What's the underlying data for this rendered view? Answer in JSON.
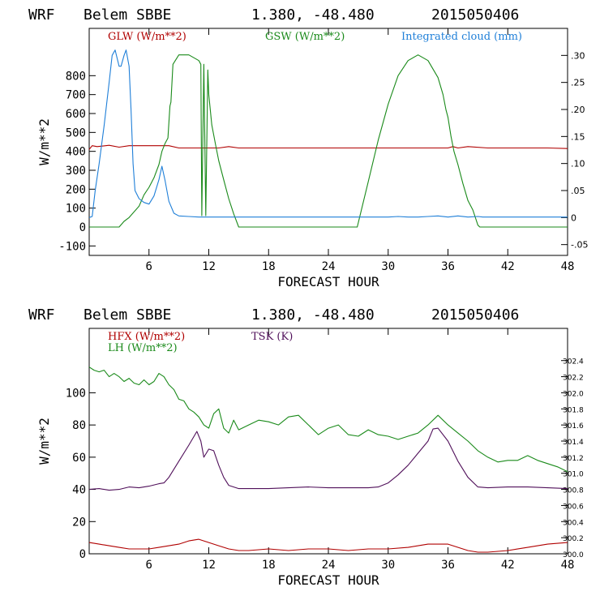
{
  "chart_data": [
    {
      "type": "line",
      "header": {
        "model": "WRF",
        "station": "Belem SBBE",
        "coords": "1.380, -48.480",
        "init": "2015050406"
      },
      "xlabel": "FORECAST HOUR",
      "ylabel": "W/m**2",
      "xlim": [
        0,
        48
      ],
      "ylim": [
        -150,
        1050
      ],
      "x_ticks": [
        "6",
        "12",
        "18",
        "24",
        "30",
        "36",
        "42",
        "48"
      ],
      "y_ticks": [
        "-100",
        "0",
        "100",
        "200",
        "300",
        "400",
        "500",
        "600",
        "700",
        "800"
      ],
      "right_ylim": [
        -0.07,
        0.35
      ],
      "right_ticks": [
        "-.05",
        "0",
        ".05",
        ".10",
        ".15",
        ".20",
        ".25",
        ".30"
      ],
      "colors": {
        "glw": "#b00000",
        "gsw": "#1a8a1a",
        "cloud": "#1f7fd8"
      },
      "series": [
        {
          "name": "GLW (W/m**2)",
          "axis": "left",
          "color": "#b00000",
          "x": [
            0,
            0.3,
            0.8,
            2,
            3,
            4,
            5,
            6,
            7,
            8,
            9,
            10,
            11,
            12,
            13,
            14,
            15,
            16,
            18,
            20,
            22,
            24,
            26,
            28,
            30,
            32,
            34,
            36,
            36.5,
            37,
            38,
            40,
            42,
            44,
            46,
            48
          ],
          "y": [
            410,
            430,
            425,
            432,
            422,
            430,
            430,
            430,
            430,
            430,
            418,
            418,
            418,
            418,
            418,
            425,
            418,
            418,
            418,
            418,
            418,
            418,
            418,
            418,
            418,
            418,
            418,
            418,
            425,
            418,
            425,
            418,
            418,
            418,
            418,
            415
          ]
        },
        {
          "name": "GSW (W/m**2)",
          "axis": "left",
          "color": "#1a8a1a",
          "x": [
            0,
            3,
            3.5,
            4,
            5,
            5.5,
            6,
            6.5,
            7,
            7.3,
            7.6,
            7.9,
            8.1,
            8.2,
            8.4,
            9,
            10,
            11,
            11.2,
            11.3,
            11.5,
            11.7,
            11.9,
            12,
            12.3,
            12.7,
            13,
            13.5,
            14,
            14.5,
            15,
            26.9,
            28,
            29,
            30,
            31,
            32,
            33,
            34,
            35,
            35.5,
            35.8,
            36,
            36.3,
            36.6,
            37,
            37.5,
            38,
            38.5,
            39,
            39.2,
            48
          ],
          "y": [
            0,
            0,
            30,
            50,
            110,
            170,
            210,
            260,
            330,
            400,
            440,
            470,
            640,
            660,
            860,
            910,
            910,
            880,
            860,
            60,
            860,
            60,
            830,
            700,
            540,
            430,
            350,
            250,
            150,
            70,
            0,
            0,
            240,
            460,
            650,
            800,
            880,
            910,
            880,
            790,
            700,
            620,
            580,
            480,
            400,
            330,
            230,
            140,
            90,
            10,
            0,
            0
          ]
        },
        {
          "name": "Integrated cloud (mm)",
          "axis": "right",
          "color": "#1f7fd8",
          "x": [
            0,
            0.3,
            0.6,
            1,
            1.5,
            2,
            2.3,
            2.6,
            3,
            3.2,
            3.5,
            3.7,
            4,
            4.2,
            4.4,
            4.6,
            5,
            5.5,
            6,
            6.5,
            7,
            7.3,
            7.6,
            8,
            8.5,
            9,
            10,
            11,
            12,
            13,
            20,
            30,
            31,
            32,
            33,
            34,
            35,
            36,
            37,
            38,
            39,
            39.5,
            40,
            48
          ],
          "y": [
            0,
            0.002,
            0.05,
            0.1,
            0.17,
            0.25,
            0.3,
            0.31,
            0.28,
            0.28,
            0.3,
            0.31,
            0.28,
            0.2,
            0.1,
            0.05,
            0.035,
            0.028,
            0.025,
            0.04,
            0.07,
            0.095,
            0.07,
            0.03,
            0.008,
            0.003,
            0.002,
            0.001,
            0.001,
            0.001,
            0.001,
            0.001,
            0.002,
            0.001,
            0.001,
            0.002,
            0.003,
            0.001,
            0.003,
            0.001,
            0.002,
            0.001,
            0.001,
            0.001
          ]
        }
      ]
    },
    {
      "type": "line",
      "header": {
        "model": "WRF",
        "station": "Belem SBBE",
        "coords": "1.380, -48.480",
        "init": "2015050406"
      },
      "xlabel": "FORECAST HOUR",
      "ylabel": "W/m**2",
      "xlim": [
        0,
        48
      ],
      "ylim": [
        0,
        140
      ],
      "x_ticks": [
        "6",
        "12",
        "18",
        "24",
        "30",
        "36",
        "42",
        "48"
      ],
      "y_ticks": [
        "0",
        "20",
        "40",
        "60",
        "80",
        "100"
      ],
      "right_ylim": [
        300.0,
        302.8
      ],
      "right_ticks": [
        "300.0",
        "300.2",
        "300.4",
        "300.6",
        "300.8",
        "301.0",
        "301.2",
        "301.4",
        "301.6",
        "301.8",
        "302.0",
        "302.2",
        "302.4"
      ],
      "colors": {
        "hfx": "#b00000",
        "lh": "#1a8a1a",
        "tsk": "#50105a"
      },
      "series": [
        {
          "name": "HFX (W/m**2)",
          "axis": "left",
          "color": "#b00000",
          "x": [
            0,
            1,
            2,
            3,
            4,
            5,
            6,
            7,
            8,
            9,
            10,
            11,
            12,
            13,
            14,
            15,
            16,
            18,
            20,
            22,
            24,
            26,
            28,
            30,
            32,
            34,
            36,
            38,
            39,
            40,
            42,
            44,
            46,
            48
          ],
          "y": [
            7,
            6,
            5,
            4,
            3,
            3,
            3,
            4,
            5,
            6,
            8,
            9,
            7,
            5,
            3,
            2,
            2,
            3,
            2,
            3,
            3,
            2,
            3,
            3,
            4,
            6,
            6,
            2,
            1,
            1,
            2,
            4,
            6,
            7
          ]
        },
        {
          "name": "LH (W/m**2)",
          "axis": "left",
          "color": "#1a8a1a",
          "x": [
            0,
            0.5,
            1,
            1.5,
            2,
            2.5,
            3,
            3.5,
            4,
            4.5,
            5,
            5.5,
            6,
            6.5,
            7,
            7.5,
            8,
            8.5,
            9,
            9.5,
            10,
            10.5,
            11,
            11.5,
            12,
            12.5,
            13,
            13.5,
            14,
            14.5,
            15,
            16,
            17,
            18,
            19,
            20,
            21,
            22,
            23,
            24,
            25,
            26,
            27,
            28,
            29,
            30,
            31,
            32,
            33,
            34,
            35,
            36,
            37,
            38,
            39,
            40,
            41,
            42,
            43,
            44,
            45,
            46,
            47,
            48
          ],
          "y": [
            116,
            114,
            113,
            114,
            110,
            112,
            110,
            107,
            109,
            106,
            105,
            108,
            105,
            107,
            112,
            110,
            105,
            102,
            96,
            95,
            90,
            88,
            85,
            80,
            78,
            87,
            90,
            78,
            75,
            83,
            77,
            80,
            83,
            82,
            80,
            85,
            86,
            80,
            74,
            78,
            80,
            74,
            73,
            77,
            74,
            73,
            71,
            73,
            75,
            80,
            86,
            80,
            75,
            70,
            64,
            60,
            57,
            58,
            58,
            61,
            58,
            56,
            54,
            51
          ]
        },
        {
          "name": "TSK (K)",
          "axis": "right",
          "color": "#50105a",
          "x": [
            0,
            1,
            2,
            3,
            4,
            5,
            6,
            7,
            7.5,
            8,
            9,
            10,
            10.8,
            11.2,
            11.5,
            12,
            12.5,
            13,
            13.5,
            14,
            15,
            16,
            18,
            20,
            22,
            24,
            26,
            28,
            29,
            30,
            31,
            32,
            33,
            34,
            34.5,
            35,
            36,
            37,
            38,
            39,
            40,
            42,
            44,
            46,
            48
          ],
          "y": [
            300.8,
            300.81,
            300.79,
            300.8,
            300.83,
            300.82,
            300.84,
            300.87,
            300.88,
            300.95,
            301.15,
            301.35,
            301.52,
            301.4,
            301.2,
            301.3,
            301.28,
            301.1,
            300.95,
            300.85,
            300.81,
            300.81,
            300.81,
            300.82,
            300.83,
            300.82,
            300.82,
            300.82,
            300.83,
            300.88,
            300.98,
            301.1,
            301.25,
            301.4,
            301.55,
            301.56,
            301.4,
            301.15,
            300.95,
            300.83,
            300.82,
            300.83,
            300.83,
            300.82,
            300.81
          ]
        }
      ]
    }
  ]
}
